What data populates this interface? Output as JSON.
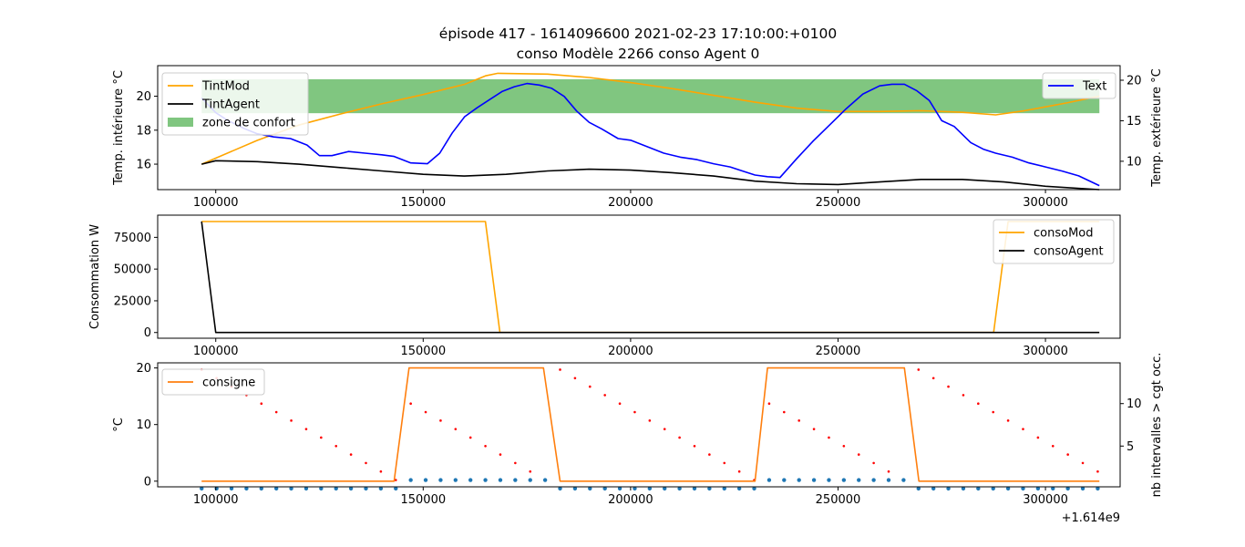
{
  "figure": {
    "title_line1": "épisode 417 - 1614096600 2021-02-23 17:10:00:+0100",
    "title_line2": "conso Modèle 2266 conso Agent 0"
  },
  "colors": {
    "tintmod": "#ffa500",
    "tintagent": "#000000",
    "text": "#0000ff",
    "comfort": "#2ca02c",
    "consigne": "#ff7f0e",
    "dots_red": "#ff0000",
    "dots_blue": "#1f77b4"
  },
  "chart_data": [
    {
      "type": "line",
      "ylabel": "Temp. intérieure °C",
      "y2label": "Temp. extérieure °C",
      "xlim": [
        86000,
        318000
      ],
      "ylim": [
        14.5,
        21.8
      ],
      "y2lim": [
        6.5,
        21.8
      ],
      "xticks": [
        100000,
        150000,
        200000,
        250000,
        300000
      ],
      "xtick_labels": [
        "100000",
        "150000",
        "200000",
        "250000",
        "300000"
      ],
      "yticks": [
        16,
        18,
        20
      ],
      "ytick_labels": [
        "16",
        "18",
        "20"
      ],
      "y2ticks": [
        10,
        15,
        20
      ],
      "y2tick_labels": [
        "10",
        "15",
        "20"
      ],
      "comfort_zone": {
        "name": "zone de confort",
        "x": [
          96600,
          313000
        ],
        "y": [
          19,
          21
        ]
      },
      "legend_left": [
        "TintMod",
        "TintAgent",
        "zone de confort"
      ],
      "legend_right": [
        "Text"
      ],
      "series": [
        {
          "name": "TintMod",
          "axis": "left",
          "color": "#ffa500",
          "x": [
            96600,
            110000,
            120000,
            130000,
            140000,
            150000,
            160000,
            165000,
            168000,
            180000,
            190000,
            200000,
            210000,
            220000,
            230000,
            240000,
            250000,
            260000,
            270000,
            280000,
            288000,
            295000,
            305000,
            313000
          ],
          "y": [
            16.0,
            17.4,
            18.3,
            18.95,
            19.55,
            20.1,
            20.7,
            21.2,
            21.35,
            21.3,
            21.1,
            20.8,
            20.45,
            20.05,
            19.65,
            19.3,
            19.1,
            19.1,
            19.15,
            19.05,
            18.9,
            19.15,
            19.6,
            20.0
          ]
        },
        {
          "name": "TintAgent",
          "axis": "left",
          "color": "#000000",
          "x": [
            96600,
            100000,
            110000,
            120000,
            130000,
            140000,
            150000,
            160000,
            170000,
            180000,
            190000,
            200000,
            210000,
            220000,
            230000,
            240000,
            250000,
            260000,
            270000,
            280000,
            290000,
            300000,
            313000
          ],
          "y": [
            16.0,
            16.2,
            16.15,
            16.0,
            15.8,
            15.6,
            15.4,
            15.3,
            15.4,
            15.6,
            15.7,
            15.65,
            15.5,
            15.3,
            15.0,
            14.85,
            14.8,
            14.95,
            15.1,
            15.1,
            14.95,
            14.7,
            14.5
          ]
        },
        {
          "name": "Text",
          "axis": "right",
          "color": "#0000ff",
          "x": [
            96600,
            100000,
            103000,
            107000,
            110000,
            114000,
            118000,
            122000,
            125000,
            128000,
            132000,
            136000,
            140000,
            143000,
            147000,
            151000,
            154000,
            157000,
            160000,
            163000,
            166000,
            169000,
            172000,
            175000,
            178000,
            181000,
            184000,
            187000,
            190000,
            193000,
            197000,
            200000,
            204000,
            208000,
            212000,
            216000,
            220000,
            224000,
            227000,
            230000,
            233000,
            236000,
            240000,
            244000,
            248000,
            252000,
            256000,
            260000,
            263000,
            266000,
            269000,
            272000,
            275000,
            278000,
            282000,
            285000,
            288000,
            292000,
            296000,
            300000,
            304000,
            308000,
            313000
          ],
          "y": [
            17.8,
            16.0,
            15.0,
            14.0,
            13.4,
            13.0,
            12.8,
            12.0,
            10.7,
            10.7,
            11.2,
            11.0,
            10.8,
            10.6,
            9.8,
            9.7,
            11.0,
            13.5,
            15.5,
            16.6,
            17.6,
            18.6,
            19.2,
            19.6,
            19.4,
            19.0,
            18.0,
            16.2,
            14.8,
            14.0,
            12.8,
            12.6,
            11.8,
            11.0,
            10.5,
            10.2,
            9.7,
            9.3,
            8.8,
            8.3,
            8.1,
            8.0,
            10.3,
            12.5,
            14.5,
            16.5,
            18.3,
            19.3,
            19.5,
            19.5,
            18.7,
            17.5,
            15.0,
            14.3,
            12.3,
            11.5,
            11.0,
            10.5,
            9.8,
            9.3,
            8.8,
            8.2,
            7.0
          ]
        }
      ]
    },
    {
      "type": "line",
      "ylabel": "Consommation W",
      "xlim": [
        86000,
        318000
      ],
      "ylim": [
        -4500,
        92500
      ],
      "xticks": [
        100000,
        150000,
        200000,
        250000,
        300000
      ],
      "xtick_labels": [
        "100000",
        "150000",
        "200000",
        "250000",
        "300000"
      ],
      "yticks": [
        0,
        25000,
        50000,
        75000
      ],
      "ytick_labels": [
        "0",
        "25000",
        "50000",
        "75000"
      ],
      "legend": [
        "consoMod",
        "consoAgent"
      ],
      "series": [
        {
          "name": "consoMod",
          "color": "#ffa500",
          "x": [
            96600,
            165000,
            168500,
            287500,
            291000,
            313000
          ],
          "y": [
            87500,
            87500,
            0,
            0,
            87500,
            87500
          ]
        },
        {
          "name": "consoAgent",
          "color": "#000000",
          "x": [
            96600,
            100000,
            313000
          ],
          "y": [
            87500,
            0,
            0
          ]
        }
      ]
    },
    {
      "type": "line",
      "ylabel": "°C",
      "y2label": "nb intervalles > cgt occ.",
      "offset_label": "+1.614e9",
      "xlim": [
        86000,
        318000
      ],
      "ylim": [
        -1,
        20.9
      ],
      "y2lim": [
        0.2,
        14.8
      ],
      "xticks": [
        100000,
        150000,
        200000,
        250000,
        300000
      ],
      "xtick_labels": [
        "100000",
        "150000",
        "200000",
        "250000",
        "300000"
      ],
      "yticks": [
        0,
        10,
        20
      ],
      "ytick_labels": [
        "0",
        "10",
        "20"
      ],
      "y2ticks": [
        5,
        10
      ],
      "y2tick_labels": [
        "5",
        "10"
      ],
      "legend": [
        "consigne"
      ],
      "series": [
        {
          "name": "consigne",
          "color": "#ff7f0e",
          "x": [
            96600,
            143000,
            146600,
            179000,
            183000,
            230000,
            233000,
            266000,
            269500,
            313000
          ],
          "y": [
            0,
            0,
            20,
            20,
            0,
            0,
            20,
            20,
            0,
            0
          ]
        }
      ],
      "scatter_red": {
        "x": [
          96600,
          100200,
          103800,
          107400,
          111000,
          114600,
          118200,
          121800,
          125400,
          129000,
          132600,
          136200,
          139800,
          143400,
          147000,
          150600,
          154200,
          157800,
          161400,
          165000,
          168600,
          172200,
          175800,
          179400,
          183000,
          186600,
          190200,
          193800,
          197400,
          201000,
          204600,
          208200,
          211800,
          215400,
          219000,
          222600,
          226200,
          229800,
          233400,
          237000,
          240600,
          244200,
          247800,
          251400,
          255000,
          258600,
          262200,
          265800,
          269400,
          273000,
          276600,
          280200,
          283800,
          287400,
          291000,
          294600,
          298200,
          301800,
          305400,
          309000,
          312600
        ],
        "y": [
          14,
          13,
          12,
          11,
          10,
          9,
          8,
          7,
          6,
          5,
          4,
          3,
          2,
          1,
          10,
          9,
          8,
          7,
          6,
          5,
          4,
          3,
          2,
          1,
          14,
          13,
          12,
          11,
          10,
          9,
          8,
          7,
          6,
          5,
          4,
          3,
          2,
          1,
          10,
          9,
          8,
          7,
          6,
          5,
          4,
          3,
          2,
          1,
          14,
          13,
          12,
          11,
          10,
          9,
          8,
          7,
          6,
          5,
          4,
          3,
          2
        ]
      },
      "scatter_blue": {
        "x": [
          96600,
          100200,
          103800,
          107400,
          111000,
          114600,
          118200,
          121800,
          125400,
          129000,
          132600,
          136200,
          139800,
          143400,
          147000,
          150600,
          154200,
          157800,
          161400,
          165000,
          168600,
          172200,
          175800,
          179400,
          183000,
          186600,
          190200,
          193800,
          197400,
          201000,
          204600,
          208200,
          211800,
          215400,
          219000,
          222600,
          226200,
          229800,
          233400,
          237000,
          240600,
          244200,
          247800,
          251400,
          255000,
          258600,
          262200,
          265800,
          269400,
          273000,
          276600,
          280200,
          283800,
          287400,
          291000,
          294600,
          298200,
          301800,
          305400,
          309000,
          312600
        ],
        "y": [
          0,
          0,
          0,
          0,
          0,
          0,
          0,
          0,
          0,
          0,
          0,
          0,
          0,
          0,
          1,
          1,
          1,
          1,
          1,
          1,
          1,
          1,
          1,
          1,
          0,
          0,
          0,
          0,
          0,
          0,
          0,
          0,
          0,
          0,
          0,
          0,
          0,
          0,
          1,
          1,
          1,
          1,
          1,
          1,
          1,
          1,
          1,
          1,
          0,
          0,
          0,
          0,
          0,
          0,
          0,
          0,
          0,
          0,
          0,
          0,
          0
        ]
      }
    }
  ]
}
